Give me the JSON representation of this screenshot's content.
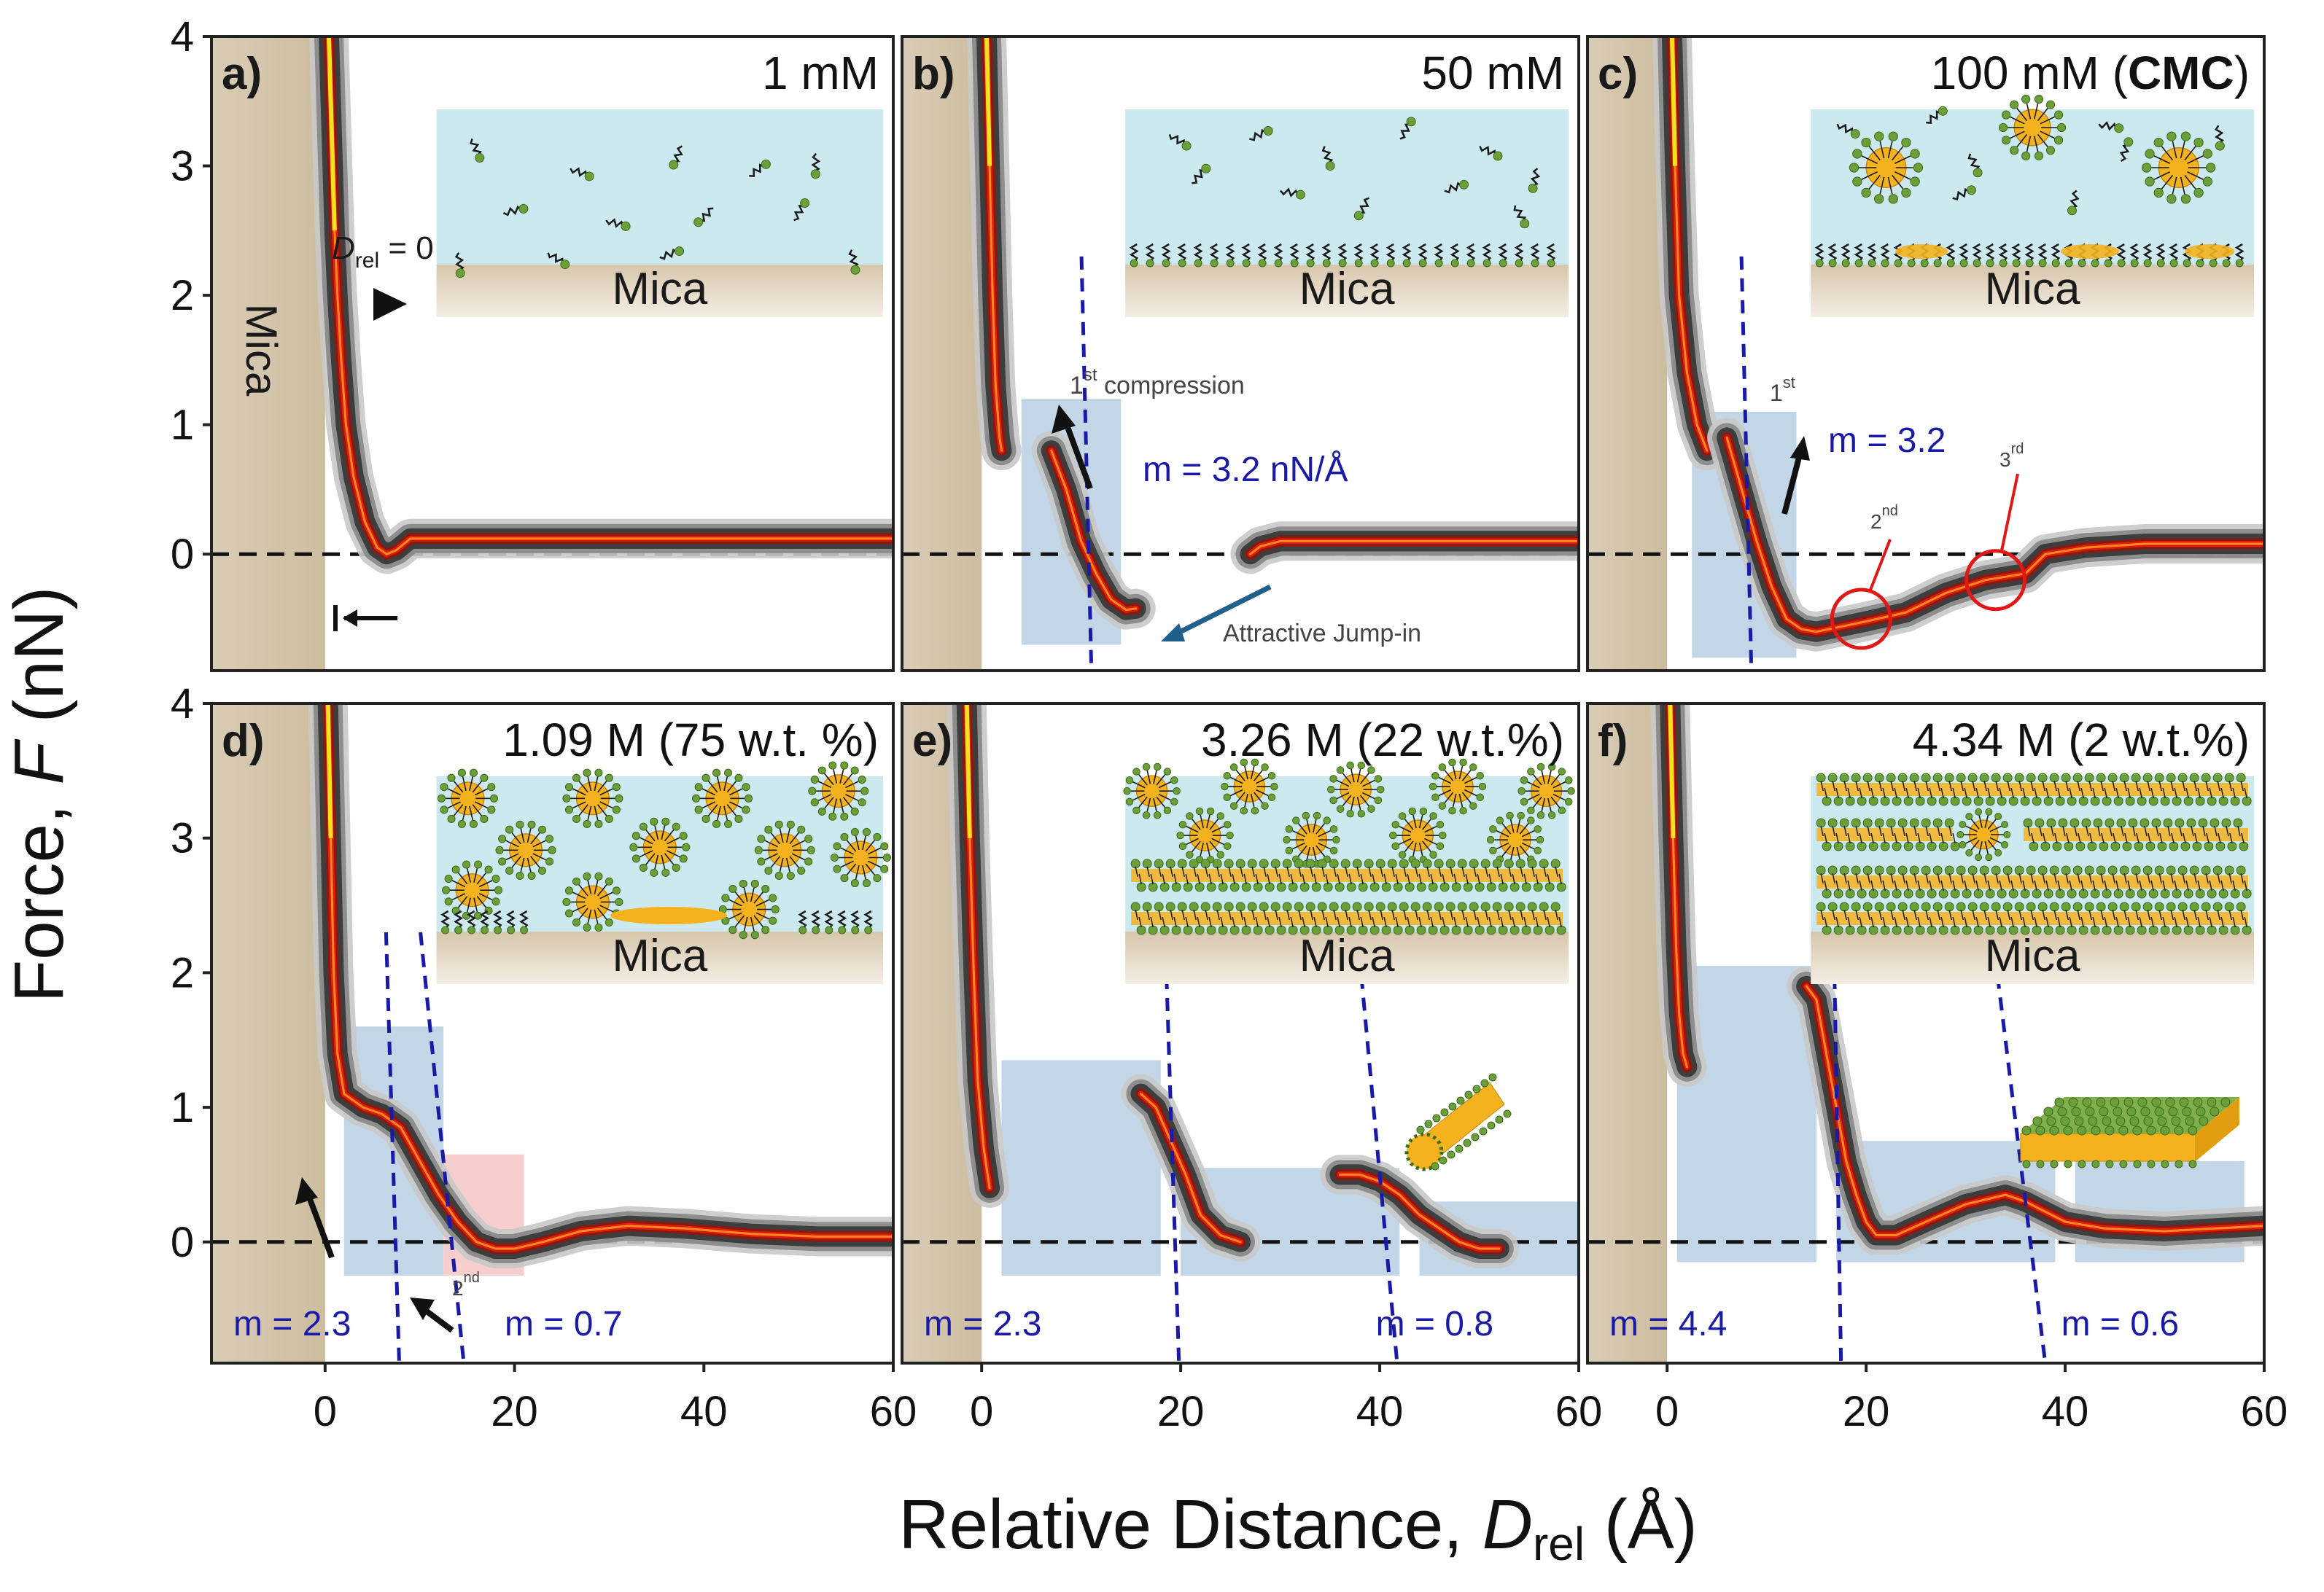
{
  "figure": {
    "ylabel_prefix": "Force, ",
    "ylabel_var": "F",
    "ylabel_unit": " (nN)",
    "xlabel_prefix": "Relative Distance, ",
    "xlabel_var": "D",
    "xlabel_sub": "rel",
    "xlabel_unit": " (Å)",
    "mica_label": "Mica",
    "colors": {
      "water": "#cde9f0",
      "mica": "#d9cbb4",
      "fit": "#1a1aa8",
      "region_blue": "#b7cfe3",
      "region_red": "#f4c6c6",
      "head": "#6a9f3a",
      "core": "#f5b21f",
      "trace_hot": "#e01a10",
      "trace_outer": "#3d3d3d"
    }
  },
  "annotations": {
    "a_drel": "D",
    "a_drel_sub": "rel",
    "a_drel_val": " = 0",
    "b_compression_sup": "st",
    "b_compression_pre": "1",
    "b_compression": " compression",
    "b_jump": "Attractive Jump-in",
    "c_first_pre": "1",
    "c_first_sup": "st",
    "c_second_pre": "2",
    "c_second_sup": "nd",
    "c_third_pre": "3",
    "c_third_sup": "rd",
    "d_second_pre": "2",
    "d_second_sup": "nd"
  },
  "chart_data": [
    {
      "id": "a",
      "type": "heatmap",
      "panel_label": "a)",
      "title": "1 mM",
      "xlim": [
        -12,
        60
      ],
      "ylim": [
        -0.9,
        4
      ],
      "xticks": [
        0,
        20,
        40,
        60
      ],
      "yticks": [
        0,
        1,
        2,
        3,
        4
      ],
      "inset": "monomers",
      "fits": [],
      "trace": [
        [
          0.4,
          4.0
        ],
        [
          0.6,
          3.5
        ],
        [
          0.8,
          3.0
        ],
        [
          1.0,
          2.5
        ],
        [
          1.3,
          2.0
        ],
        [
          1.7,
          1.5
        ],
        [
          2.2,
          1.0
        ],
        [
          3.0,
          0.6
        ],
        [
          4.2,
          0.25
        ],
        [
          5.5,
          0.05
        ],
        [
          6.5,
          0.0
        ],
        [
          7.5,
          0.03
        ],
        [
          9,
          0.12
        ],
        [
          15,
          0.12
        ],
        [
          30,
          0.12
        ],
        [
          45,
          0.12
        ],
        [
          60,
          0.12
        ]
      ]
    },
    {
      "id": "b",
      "type": "heatmap",
      "panel_label": "b)",
      "title": "50 mM",
      "xlim": [
        -8,
        60
      ],
      "ylim": [
        -0.9,
        4
      ],
      "xticks": [
        0,
        20,
        40,
        60
      ],
      "yticks": [
        0,
        1,
        2,
        3,
        4
      ],
      "inset": "monolayer",
      "fits": [
        {
          "label": "m = 3.2 nN/Å",
          "slope": 3.2,
          "x0": 10.5,
          "y0": 0.8
        }
      ],
      "trace": [
        [
          0.5,
          4.0
        ],
        [
          0.8,
          3.0
        ],
        [
          1.1,
          2.0
        ],
        [
          1.4,
          1.3
        ],
        [
          1.8,
          0.9
        ],
        [
          2.0,
          0.8
        ]
      ],
      "trace2": [
        [
          7.0,
          0.8
        ],
        [
          8.5,
          0.5
        ],
        [
          10.0,
          0.1
        ],
        [
          11.5,
          -0.15
        ],
        [
          13.0,
          -0.35
        ],
        [
          14.5,
          -0.43
        ],
        [
          15.5,
          -0.42
        ]
      ],
      "trace3": [
        [
          27,
          0.0
        ],
        [
          28,
          0.06
        ],
        [
          30,
          0.1
        ],
        [
          45,
          0.1
        ],
        [
          60,
          0.1
        ]
      ],
      "regions": [
        {
          "x": [
            4,
            14
          ],
          "y": [
            -0.7,
            1.2
          ],
          "kind": "blue"
        }
      ]
    },
    {
      "id": "c",
      "type": "heatmap",
      "panel_label": "c)",
      "title": "100 mM (CMC)",
      "xlim": [
        -8,
        60
      ],
      "ylim": [
        -0.9,
        4
      ],
      "xticks": [
        0,
        20,
        40,
        60
      ],
      "yticks": [
        0,
        1,
        2,
        3,
        4
      ],
      "inset": "spheres",
      "fits": [
        {
          "label": "m = 3.2",
          "slope": 3.2,
          "x0": 8,
          "y0": 0.6
        }
      ],
      "trace": [
        [
          0.5,
          4.0
        ],
        [
          0.8,
          3.0
        ],
        [
          1.2,
          2.0
        ],
        [
          2.0,
          1.4
        ],
        [
          3.0,
          1.0
        ],
        [
          4.0,
          0.8
        ]
      ],
      "trace2": [
        [
          6.0,
          0.9
        ],
        [
          7.5,
          0.5
        ],
        [
          9.0,
          0.1
        ],
        [
          10.5,
          -0.25
        ],
        [
          12.0,
          -0.5
        ],
        [
          13.5,
          -0.58
        ],
        [
          15,
          -0.6
        ],
        [
          20,
          -0.52
        ],
        [
          24,
          -0.45
        ],
        [
          28,
          -0.3
        ],
        [
          32,
          -0.2
        ],
        [
          36,
          -0.15
        ],
        [
          38,
          0.0
        ],
        [
          42,
          0.05
        ],
        [
          48,
          0.08
        ],
        [
          60,
          0.08
        ]
      ],
      "regions": [
        {
          "x": [
            2.5,
            13
          ],
          "y": [
            -0.8,
            1.1
          ],
          "kind": "blue"
        }
      ]
    },
    {
      "id": "d",
      "type": "heatmap",
      "panel_label": "d)",
      "title": "1.09 M (75 w.t. %)",
      "xlim": [
        -12,
        60
      ],
      "ylim": [
        -0.9,
        4
      ],
      "xticks": [
        0,
        20,
        40,
        60
      ],
      "yticks": [
        0,
        1,
        2,
        3,
        4
      ],
      "inset": "dense-spheres",
      "fits": [
        {
          "label": "m = 2.3",
          "slope": 2.3,
          "x0": 7,
          "y0": 1.0
        },
        {
          "label": "m = 0.7",
          "slope": 0.7,
          "x0": 13,
          "y0": 0.25
        }
      ],
      "trace": [
        [
          0.3,
          4.0
        ],
        [
          0.6,
          3.0
        ],
        [
          0.9,
          2.0
        ],
        [
          1.3,
          1.4
        ],
        [
          2.0,
          1.1
        ],
        [
          4.0,
          1.0
        ],
        [
          6,
          0.95
        ],
        [
          8,
          0.85
        ],
        [
          10,
          0.6
        ],
        [
          12,
          0.35
        ],
        [
          14,
          0.15
        ],
        [
          16,
          0.0
        ],
        [
          18,
          -0.05
        ],
        [
          20,
          -0.05
        ],
        [
          23,
          0.0
        ],
        [
          27,
          0.08
        ],
        [
          32,
          0.12
        ],
        [
          38,
          0.1
        ],
        [
          45,
          0.06
        ],
        [
          52,
          0.04
        ],
        [
          60,
          0.04
        ]
      ],
      "regions": [
        {
          "x": [
            2,
            12.5
          ],
          "y": [
            -0.25,
            1.6
          ],
          "kind": "blue"
        },
        {
          "x": [
            12.5,
            21
          ],
          "y": [
            -0.25,
            0.65
          ],
          "kind": "red"
        }
      ]
    },
    {
      "id": "e",
      "type": "heatmap",
      "panel_label": "e)",
      "title": "3.26 M (22 w.t.%)",
      "xlim": [
        -8,
        60
      ],
      "ylim": [
        -0.9,
        4
      ],
      "xticks": [
        0,
        20,
        40,
        60
      ],
      "yticks": [
        0,
        1,
        2,
        3,
        4
      ],
      "inset": "cylinders",
      "fits": [
        {
          "label": "m = 2.3",
          "slope": 2.3,
          "x0": 19,
          "y0": 1.0
        },
        {
          "label": "m = 0.8",
          "slope": 0.8,
          "x0": 40,
          "y0": 0.5
        }
      ],
      "trace": [
        [
          -1.5,
          4.0
        ],
        [
          -1.2,
          3.0
        ],
        [
          -0.8,
          2.0
        ],
        [
          -0.4,
          1.2
        ],
        [
          0.2,
          0.7
        ],
        [
          0.8,
          0.4
        ]
      ],
      "trace2": [
        [
          16,
          1.1
        ],
        [
          17.5,
          1.0
        ],
        [
          19,
          0.75
        ],
        [
          20.5,
          0.5
        ],
        [
          22,
          0.2
        ],
        [
          24,
          0.05
        ],
        [
          26,
          0.0
        ]
      ],
      "trace3": [
        [
          36,
          0.5
        ],
        [
          38,
          0.5
        ],
        [
          40,
          0.45
        ],
        [
          42,
          0.35
        ],
        [
          44,
          0.2
        ],
        [
          46,
          0.1
        ],
        [
          48,
          0.0
        ],
        [
          50,
          -0.05
        ],
        [
          52,
          -0.05
        ]
      ],
      "regions": [
        {
          "x": [
            2,
            18
          ],
          "y": [
            -0.25,
            1.35
          ],
          "kind": "blue"
        },
        {
          "x": [
            20,
            42
          ],
          "y": [
            -0.25,
            0.55
          ],
          "kind": "blue"
        },
        {
          "x": [
            44,
            60
          ],
          "y": [
            -0.25,
            0.3
          ],
          "kind": "blue"
        }
      ]
    },
    {
      "id": "f",
      "type": "heatmap",
      "panel_label": "f)",
      "title": "4.34 M (2 w.t.%)",
      "xlim": [
        -8,
        60
      ],
      "ylim": [
        -0.9,
        4
      ],
      "xticks": [
        0,
        20,
        40,
        60
      ],
      "yticks": [
        0,
        1,
        2,
        3,
        4
      ],
      "inset": "lamellar",
      "fits": [
        {
          "label": "m = 4.4",
          "slope": 4.4,
          "x0": 17,
          "y0": 1.2
        },
        {
          "label": "m = 0.6",
          "slope": 0.6,
          "x0": 36,
          "y0": 0.3
        }
      ],
      "trace": [
        [
          0.3,
          4.0
        ],
        [
          0.6,
          3.0
        ],
        [
          0.9,
          2.2
        ],
        [
          1.2,
          1.7
        ],
        [
          1.6,
          1.4
        ],
        [
          2.0,
          1.3
        ]
      ],
      "trace2": [
        [
          14,
          1.9
        ],
        [
          15,
          1.8
        ],
        [
          16,
          1.4
        ],
        [
          17,
          1.0
        ],
        [
          18,
          0.6
        ],
        [
          19,
          0.35
        ],
        [
          20,
          0.15
        ],
        [
          21,
          0.05
        ],
        [
          23,
          0.05
        ],
        [
          26,
          0.15
        ],
        [
          30,
          0.28
        ],
        [
          34,
          0.35
        ],
        [
          36,
          0.3
        ],
        [
          40,
          0.15
        ],
        [
          44,
          0.1
        ],
        [
          50,
          0.08
        ],
        [
          55,
          0.1
        ],
        [
          60,
          0.12
        ]
      ],
      "regions": [
        {
          "x": [
            1,
            15
          ],
          "y": [
            -0.15,
            2.05
          ],
          "kind": "blue"
        },
        {
          "x": [
            17,
            39
          ],
          "y": [
            -0.15,
            0.75
          ],
          "kind": "blue"
        },
        {
          "x": [
            41,
            58
          ],
          "y": [
            -0.15,
            0.6
          ],
          "kind": "blue"
        }
      ]
    }
  ]
}
